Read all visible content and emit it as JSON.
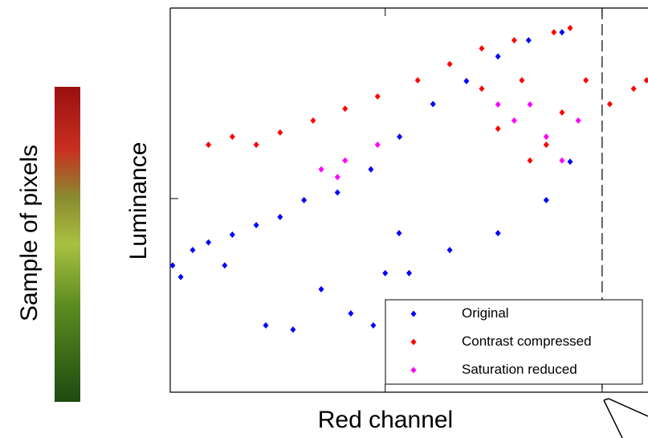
{
  "chart_data": {
    "type": "scatter",
    "image_label": "Sample of pixels",
    "xlabel": "Red channel",
    "ylabel": "Luminance",
    "xlim": [
      0,
      100
    ],
    "ylim": [
      0,
      100
    ],
    "xticks": [
      {
        "value": 45,
        "label": null
      },
      {
        "value": 90.4,
        "label": null
      }
    ],
    "yticks": [
      {
        "value": 50.4,
        "label": null
      }
    ],
    "reference_x": 90.4,
    "legend": "lower right",
    "series": [
      {
        "name": "Original",
        "color": "#0000ff",
        "x": [
          0.5,
          2.2,
          4.7,
          8,
          13,
          18,
          23,
          28,
          35,
          42,
          48,
          55,
          62,
          68.6,
          75,
          82,
          50,
          58.5,
          68.6,
          78.7,
          83.7,
          20,
          25.7,
          11.4,
          31.6,
          37.8,
          42.5,
          47.9,
          45
        ],
        "y": [
          33,
          30,
          37,
          39,
          41,
          43.5,
          45.6,
          50,
          52,
          58,
          66.5,
          75,
          81,
          87.4,
          91.6,
          93.7,
          31,
          37,
          41.4,
          50,
          60,
          17.4,
          16.3,
          33,
          26.8,
          20.5,
          17.4,
          41.4,
          31
        ]
      },
      {
        "name": "Contrast compressed",
        "color": "#ff0000",
        "x": [
          8,
          13,
          18,
          23,
          29.9,
          36.6,
          43.4,
          51.8,
          58.5,
          65.2,
          72,
          80.3,
          83.7,
          65.2,
          73.6,
          82,
          87,
          92,
          97,
          99.7,
          78.7,
          68.6,
          75.3
        ],
        "y": [
          64.4,
          66.5,
          64.4,
          67.6,
          70.7,
          73.8,
          77,
          81.2,
          85.4,
          89.5,
          91.6,
          93.7,
          94.8,
          79,
          81.2,
          72.8,
          81.2,
          75,
          79,
          81.2,
          64.4,
          68.6,
          60.3
        ]
      },
      {
        "name": "Saturation reduced",
        "color": "#ff00ff",
        "x": [
          31.6,
          36.6,
          43.4,
          35,
          72,
          75.3,
          78.7,
          82,
          85.4,
          68.6
        ],
        "y": [
          58,
          60.3,
          64.4,
          56,
          70.7,
          74.9,
          66.5,
          60.3,
          70.7,
          74.9
        ]
      }
    ]
  }
}
